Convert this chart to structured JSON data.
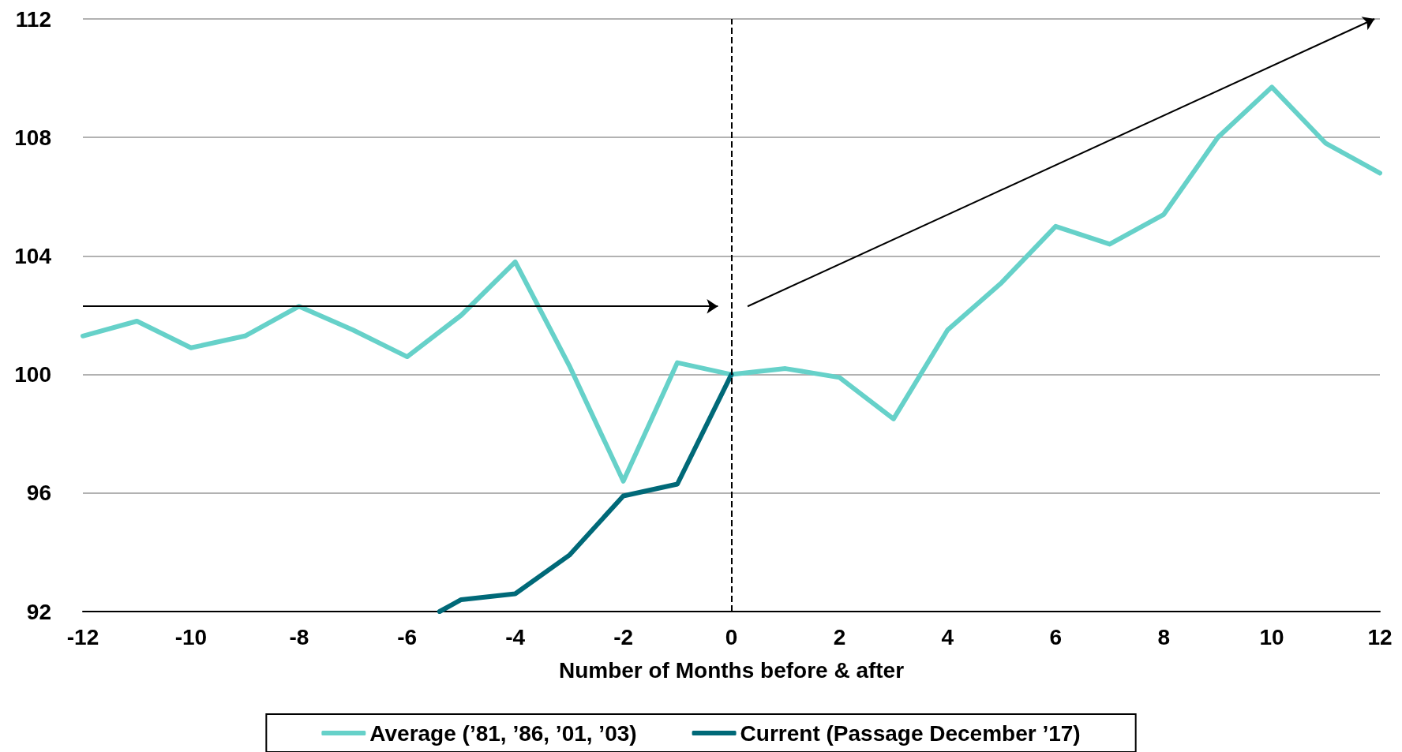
{
  "chart_data": {
    "type": "line",
    "xlabel": "Number of Months before & after",
    "xlim": [
      -12,
      12
    ],
    "xticks": [
      -12,
      -10,
      -8,
      -6,
      -4,
      -2,
      0,
      2,
      4,
      6,
      8,
      10,
      12
    ],
    "ylim": [
      92,
      112
    ],
    "yticks": [
      92,
      96,
      100,
      104,
      108,
      112
    ],
    "grid": "y",
    "legend": "bottom",
    "marker": "none",
    "line_style": "solid",
    "ref_lines": [
      {
        "axis": "x",
        "value": 0,
        "label": null,
        "color": "#000000",
        "line_style": "dashed"
      }
    ],
    "series": [
      {
        "name": "Average (’81, ’86, ’01, ’03)",
        "color": "#66d1c9",
        "x": [
          -12,
          -11,
          -10,
          -9,
          -8,
          -7,
          -6,
          -5,
          -4,
          -3,
          -2,
          -1,
          0,
          1,
          2,
          3,
          4,
          5,
          6,
          7,
          8,
          9,
          10,
          11,
          12
        ],
        "values": [
          101.3,
          101.8,
          100.9,
          101.3,
          102.3,
          101.5,
          100.6,
          102.0,
          103.8,
          100.3,
          96.4,
          100.4,
          100.0,
          100.2,
          99.9,
          98.5,
          101.5,
          103.1,
          105.0,
          104.4,
          105.4,
          108.0,
          109.7,
          107.8,
          106.8
        ]
      },
      {
        "name": "Current (Passage December ’17)",
        "color": "#006978",
        "x": [
          -5.4,
          -5,
          -4,
          -3,
          -2,
          -1,
          0
        ],
        "values": [
          92.0,
          92.4,
          92.6,
          93.9,
          95.9,
          96.3,
          100.0
        ]
      }
    ]
  }
}
